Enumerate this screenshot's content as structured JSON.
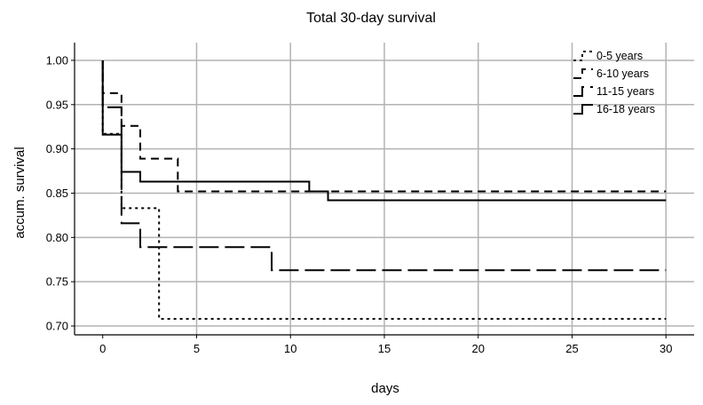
{
  "chart_data": {
    "type": "line",
    "step": true,
    "title": "Total 30-day survival",
    "xlabel": "days",
    "ylabel": "accum. survival",
    "xlim": [
      -1.5,
      31.5
    ],
    "ylim": [
      0.69,
      1.02
    ],
    "xticks": [
      0,
      5,
      10,
      15,
      20,
      25,
      30
    ],
    "yticks": [
      0.7,
      0.75,
      0.8,
      0.85,
      0.9,
      0.95,
      1.0
    ],
    "ytick_labels": [
      "0.70",
      "0.75",
      "0.80",
      "0.85",
      "0.90",
      "0.95",
      "1.00"
    ],
    "grid": true,
    "legend_position": "top-right",
    "series": [
      {
        "name": "0-5 years",
        "dash": "dotted",
        "x": [
          0,
          1,
          3,
          30
        ],
        "y": [
          0.917,
          0.833,
          0.708,
          0.708
        ]
      },
      {
        "name": "6-10 years",
        "dash": "dashed",
        "x": [
          0,
          1,
          2,
          4,
          30
        ],
        "y": [
          0.963,
          0.926,
          0.889,
          0.852,
          0.852
        ]
      },
      {
        "name": "11-15 years",
        "dash": "longdash",
        "x": [
          0,
          1,
          2,
          9,
          30
        ],
        "y": [
          0.947,
          0.816,
          0.789,
          0.763,
          0.763
        ]
      },
      {
        "name": "16-18 years",
        "dash": "solid",
        "x": [
          0,
          1,
          2,
          11,
          12,
          30
        ],
        "y": [
          0.916,
          0.874,
          0.863,
          0.852,
          0.842,
          0.842
        ]
      }
    ]
  }
}
